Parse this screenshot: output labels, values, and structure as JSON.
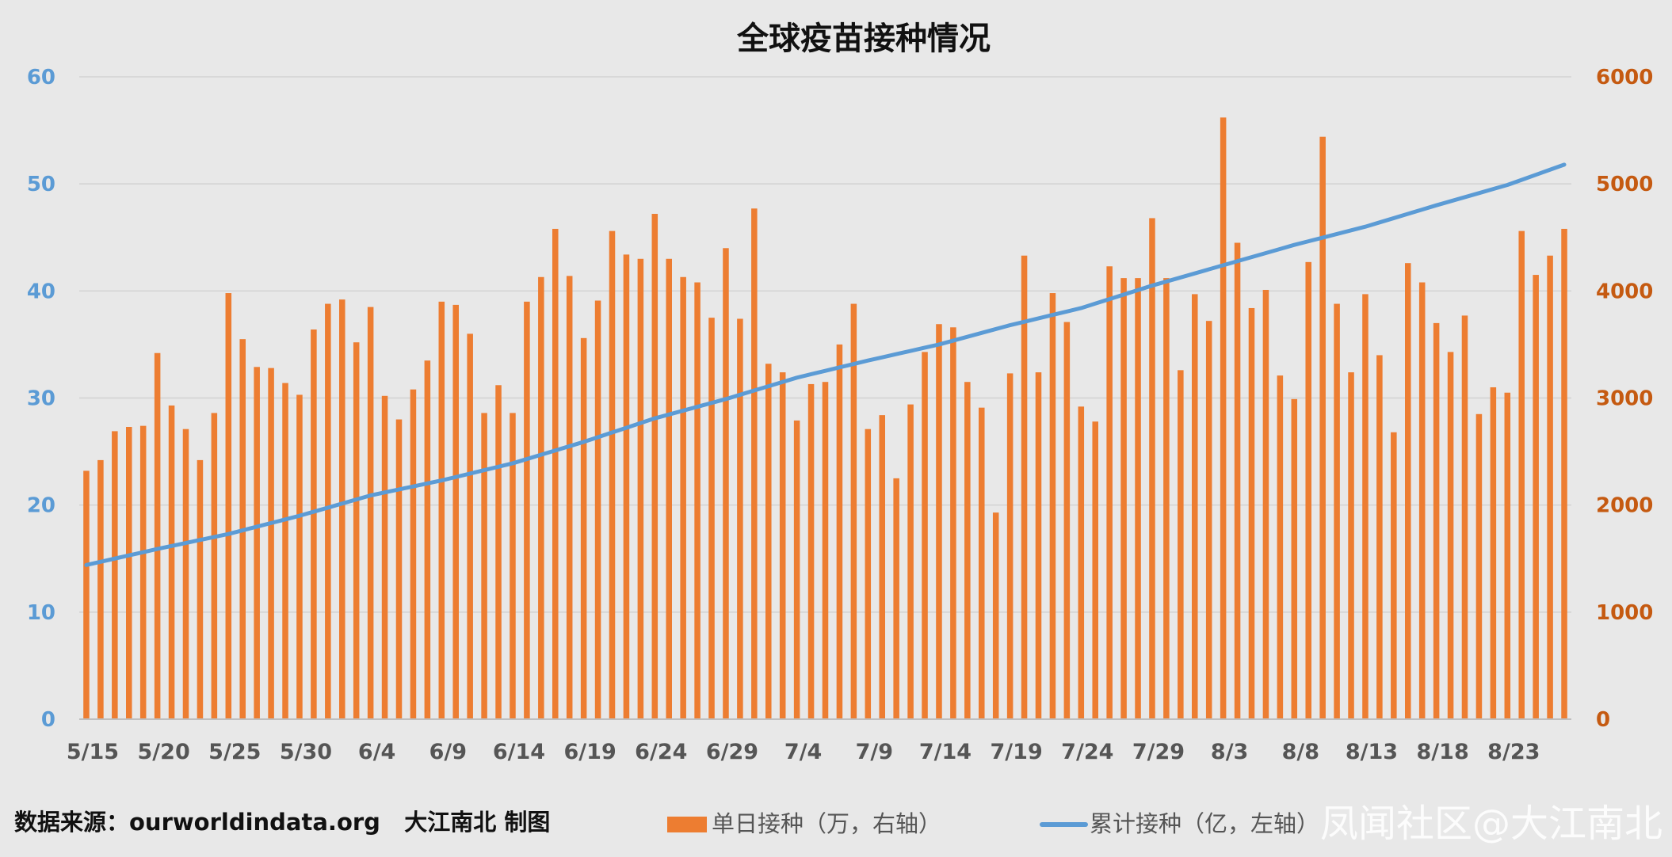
{
  "chart_data": {
    "type": "bar+line",
    "title": "全球疫苗接种情况",
    "x_tick_labels": [
      "5/15",
      "5/20",
      "5/25",
      "5/30",
      "6/4",
      "6/9",
      "6/14",
      "6/19",
      "6/24",
      "6/29",
      "7/4",
      "7/9",
      "7/14",
      "7/19",
      "7/24",
      "7/29",
      "8/3",
      "8/8",
      "8/13",
      "8/18",
      "8/23"
    ],
    "x_tick_every": 5,
    "left_axis": {
      "ylim": [
        0,
        60
      ],
      "ticks": [
        0,
        10,
        20,
        30,
        40,
        50,
        60
      ]
    },
    "right_axis": {
      "ylim": [
        0,
        6000
      ],
      "ticks": [
        0,
        1000,
        2000,
        3000,
        4000,
        5000,
        6000
      ]
    },
    "grid": true,
    "legend_position": "bottom",
    "series": [
      {
        "name": "单日接种（万，右轴）",
        "type": "bar",
        "axis": "right",
        "color": "#ed7d31",
        "values": [
          2320,
          2420,
          2690,
          2730,
          2740,
          3420,
          2930,
          2710,
          2420,
          2860,
          3980,
          3550,
          3290,
          3280,
          3140,
          3030,
          3640,
          3880,
          3920,
          3520,
          3850,
          3020,
          2800,
          3080,
          3350,
          3900,
          3870,
          3600,
          2860,
          3120,
          2860,
          3900,
          4130,
          4580,
          4140,
          3560,
          3910,
          4560,
          4340,
          4300,
          4720,
          4300,
          4130,
          4080,
          3750,
          4400,
          3740,
          4770,
          3320,
          3240,
          2790,
          3130,
          3150,
          3500,
          3880,
          2710,
          2840,
          2250,
          2940,
          3430,
          3690,
          3660,
          3150,
          2910,
          1930,
          3230,
          4330,
          3240,
          3980,
          3710,
          2920,
          2780,
          4230,
          4120,
          4120,
          4680,
          4120,
          3260,
          3970,
          3720,
          5620,
          4450,
          3840,
          4010,
          3210,
          2990,
          4270,
          5440,
          3880,
          3240,
          3970,
          3400,
          2680,
          4260,
          4080,
          3700,
          3430,
          3770,
          2850,
          3100,
          3050,
          4560,
          4150,
          4330,
          4580
        ]
      },
      {
        "name": "累计接种（亿，左轴）",
        "type": "line",
        "axis": "left",
        "color": "#5b9bd5",
        "keypoints": [
          [
            0,
            14.4
          ],
          [
            5,
            15.9
          ],
          [
            10,
            17.3
          ],
          [
            15,
            19.0
          ],
          [
            20,
            20.9
          ],
          [
            25,
            22.3
          ],
          [
            30,
            23.9
          ],
          [
            35,
            25.9
          ],
          [
            40,
            28.1
          ],
          [
            45,
            29.9
          ],
          [
            50,
            31.9
          ],
          [
            55,
            33.5
          ],
          [
            60,
            35.0
          ],
          [
            65,
            36.8
          ],
          [
            70,
            38.4
          ],
          [
            75,
            40.5
          ],
          [
            80,
            42.4
          ],
          [
            85,
            44.3
          ],
          [
            90,
            46.0
          ],
          [
            95,
            48.0
          ],
          [
            100,
            49.9
          ],
          [
            104,
            51.8
          ]
        ]
      }
    ]
  },
  "legend": {
    "bar_label": "单日接种（万，右轴）",
    "line_label": "累计接种（亿，左轴）"
  },
  "source_note": "数据来源：ourworldindata.org   大江南北 制图",
  "watermark": "凤闻社区@大江南北"
}
